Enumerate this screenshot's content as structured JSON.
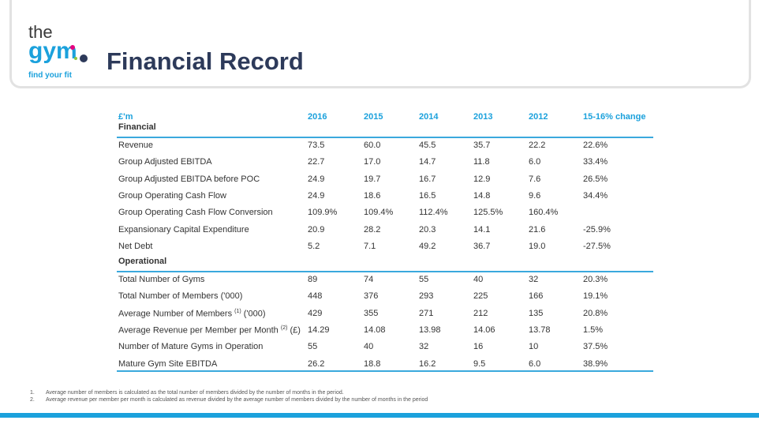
{
  "header": {
    "logo": {
      "top": "the",
      "main": "gym",
      "tagline": "find your fit"
    },
    "title": "Financial Record"
  },
  "table": {
    "unit": "£'m",
    "columns": [
      "2016",
      "2015",
      "2014",
      "2013",
      "2012",
      "15-16% change"
    ],
    "sections": [
      {
        "title": "Financial",
        "rows": [
          {
            "label": "Revenue",
            "cells": [
              "73.5",
              "60.0",
              "45.5",
              "35.7",
              "22.2",
              "22.6%"
            ]
          },
          {
            "label": "Group Adjusted EBITDA",
            "cells": [
              "22.7",
              "17.0",
              "14.7",
              "11.8",
              "6.0",
              "33.4%"
            ]
          },
          {
            "label": "Group Adjusted EBITDA before POC",
            "cells": [
              "24.9",
              "19.7",
              "16.7",
              "12.9",
              "7.6",
              "26.5%"
            ]
          },
          {
            "label": "Group Operating Cash Flow",
            "cells": [
              "24.9",
              "18.6",
              "16.5",
              "14.8",
              "9.6",
              "34.4%"
            ]
          },
          {
            "label": "Group Operating Cash Flow Conversion",
            "cells": [
              "109.9%",
              "109.4%",
              "112.4%",
              "125.5%",
              "160.4%",
              null
            ]
          },
          {
            "label": "Expansionary Capital Expenditure",
            "cells": [
              "20.9",
              "28.2",
              "20.3",
              "14.1",
              "21.6",
              "-25.9%"
            ]
          },
          {
            "label": "Net Debt",
            "cells": [
              "5.2",
              "7.1",
              "49.2",
              "36.7",
              "19.0",
              "-27.5%"
            ]
          }
        ]
      },
      {
        "title": "Operational",
        "rows": [
          {
            "label": "Total Number of Gyms",
            "cells": [
              "89",
              "74",
              "55",
              "40",
              "32",
              "20.3%"
            ]
          },
          {
            "label": "Total Number of Members ('000)",
            "cells": [
              "448",
              "376",
              "293",
              "225",
              "166",
              "19.1%"
            ]
          },
          {
            "label": "Average Number of Members",
            "note": "(1)",
            "suffix": "('000)",
            "cells": [
              "429",
              "355",
              "271",
              "212",
              "135",
              "20.8%"
            ]
          },
          {
            "label": "Average Revenue per Member per Month",
            "note": "(2)",
            "suffix": "(£)",
            "cells": [
              "14.29",
              "14.08",
              "13.98",
              "14.06",
              "13.78",
              "1.5%"
            ]
          },
          {
            "label": "Number of Mature Gyms in Operation",
            "cells": [
              "55",
              "40",
              "32",
              "16",
              "10",
              "37.5%"
            ]
          },
          {
            "label": "Mature Gym Site EBITDA",
            "cells": [
              "26.2",
              "18.8",
              "16.2",
              "9.5",
              "6.0",
              "38.9%"
            ]
          }
        ]
      }
    ]
  },
  "footnotes": [
    {
      "number": "1.",
      "text": "Average number of members is calculated as the total number of members divided by the number of months in the period."
    },
    {
      "number": "2.",
      "text": "Average revenue per member per month is calculated as revenue divided by the average number of members divided by the number of months in the period"
    }
  ]
}
